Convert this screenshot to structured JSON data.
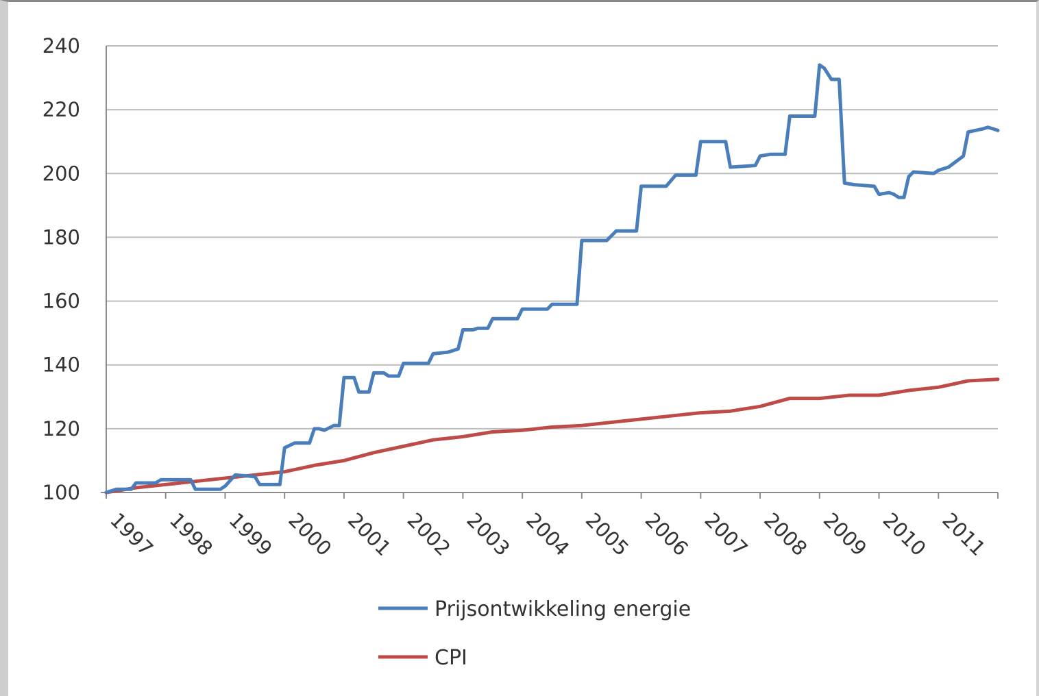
{
  "chart_data": {
    "type": "line",
    "title": "",
    "xlabel": "",
    "ylabel": "",
    "ylim": [
      100,
      240
    ],
    "yticks": [
      100,
      120,
      140,
      160,
      180,
      200,
      220,
      240
    ],
    "ytick_labels": [
      "100",
      "120",
      "140",
      "160",
      "180",
      "200",
      "220",
      "240"
    ],
    "xlim": [
      1997,
      2012
    ],
    "xtick_labels": [
      "1997",
      "1998",
      "1999",
      "2000",
      "2001",
      "2002",
      "2003",
      "2004",
      "2005",
      "2006",
      "2007",
      "2008",
      "2009",
      "2010",
      "2011"
    ],
    "grid": "horizontal",
    "legend_position": "bottom",
    "series": [
      {
        "name": "Prijsontwikkeling energie",
        "color": "#4a7ebb",
        "points": [
          [
            1997.0,
            100
          ],
          [
            1997.17,
            101
          ],
          [
            1997.42,
            101
          ],
          [
            1997.5,
            103
          ],
          [
            1997.83,
            103
          ],
          [
            1997.92,
            104
          ],
          [
            1998.42,
            104
          ],
          [
            1998.5,
            101
          ],
          [
            1998.92,
            101
          ],
          [
            1999.0,
            102
          ],
          [
            1999.17,
            105.5
          ],
          [
            1999.5,
            105
          ],
          [
            1999.58,
            102.5
          ],
          [
            1999.92,
            102.5
          ],
          [
            2000.0,
            114
          ],
          [
            2000.17,
            115.5
          ],
          [
            2000.42,
            115.5
          ],
          [
            2000.5,
            120
          ],
          [
            2000.58,
            120
          ],
          [
            2000.67,
            119.5
          ],
          [
            2000.83,
            121
          ],
          [
            2000.92,
            121
          ],
          [
            2001.0,
            136
          ],
          [
            2001.17,
            136
          ],
          [
            2001.25,
            131.5
          ],
          [
            2001.42,
            131.5
          ],
          [
            2001.5,
            137.5
          ],
          [
            2001.67,
            137.5
          ],
          [
            2001.75,
            136.5
          ],
          [
            2001.92,
            136.5
          ],
          [
            2002.0,
            140.5
          ],
          [
            2002.42,
            140.5
          ],
          [
            2002.5,
            143.5
          ],
          [
            2002.75,
            144
          ],
          [
            2002.92,
            145
          ],
          [
            2003.0,
            151
          ],
          [
            2003.17,
            151
          ],
          [
            2003.25,
            151.5
          ],
          [
            2003.42,
            151.5
          ],
          [
            2003.5,
            154.5
          ],
          [
            2003.92,
            154.5
          ],
          [
            2004.0,
            157.5
          ],
          [
            2004.42,
            157.5
          ],
          [
            2004.5,
            159
          ],
          [
            2004.92,
            159
          ],
          [
            2005.0,
            179
          ],
          [
            2005.42,
            179
          ],
          [
            2005.58,
            182
          ],
          [
            2005.92,
            182
          ],
          [
            2006.0,
            196
          ],
          [
            2006.42,
            196
          ],
          [
            2006.58,
            199.5
          ],
          [
            2006.92,
            199.5
          ],
          [
            2007.0,
            210
          ],
          [
            2007.42,
            210
          ],
          [
            2007.5,
            202
          ],
          [
            2007.92,
            202.5
          ],
          [
            2008.0,
            205.5
          ],
          [
            2008.17,
            206
          ],
          [
            2008.42,
            206
          ],
          [
            2008.5,
            218
          ],
          [
            2008.92,
            218
          ],
          [
            2009.0,
            234
          ],
          [
            2009.08,
            233
          ],
          [
            2009.2,
            229.5
          ],
          [
            2009.33,
            229.5
          ],
          [
            2009.42,
            197
          ],
          [
            2009.58,
            196.5
          ],
          [
            2009.92,
            196
          ],
          [
            2010.0,
            193.5
          ],
          [
            2010.17,
            194
          ],
          [
            2010.25,
            193.5
          ],
          [
            2010.33,
            192.5
          ],
          [
            2010.42,
            192.5
          ],
          [
            2010.5,
            199
          ],
          [
            2010.58,
            200.5
          ],
          [
            2010.92,
            200
          ],
          [
            2011.0,
            201
          ],
          [
            2011.17,
            202
          ],
          [
            2011.42,
            205.5
          ],
          [
            2011.5,
            213
          ],
          [
            2011.75,
            214
          ],
          [
            2011.83,
            214.5
          ],
          [
            2011.92,
            214
          ],
          [
            2012.0,
            213.5
          ]
        ]
      },
      {
        "name": "CPI",
        "color": "#be4b48",
        "points": [
          [
            1997.0,
            100
          ],
          [
            1997.5,
            101.5
          ],
          [
            1998.0,
            102.5
          ],
          [
            1998.5,
            103.5
          ],
          [
            1999.0,
            104.5
          ],
          [
            1999.5,
            105.5
          ],
          [
            2000.0,
            106.5
          ],
          [
            2000.5,
            108.5
          ],
          [
            2001.0,
            110
          ],
          [
            2001.5,
            112.5
          ],
          [
            2002.0,
            114.5
          ],
          [
            2002.5,
            116.5
          ],
          [
            2003.0,
            117.5
          ],
          [
            2003.5,
            119
          ],
          [
            2004.0,
            119.5
          ],
          [
            2004.5,
            120.5
          ],
          [
            2005.0,
            121
          ],
          [
            2005.5,
            122
          ],
          [
            2006.0,
            123
          ],
          [
            2006.5,
            124
          ],
          [
            2007.0,
            125
          ],
          [
            2007.5,
            125.5
          ],
          [
            2008.0,
            127
          ],
          [
            2008.5,
            129.5
          ],
          [
            2009.0,
            129.5
          ],
          [
            2009.5,
            130.5
          ],
          [
            2010.0,
            130.5
          ],
          [
            2010.5,
            132
          ],
          [
            2011.0,
            133
          ],
          [
            2011.5,
            135
          ],
          [
            2012.0,
            135.5
          ]
        ]
      }
    ]
  }
}
